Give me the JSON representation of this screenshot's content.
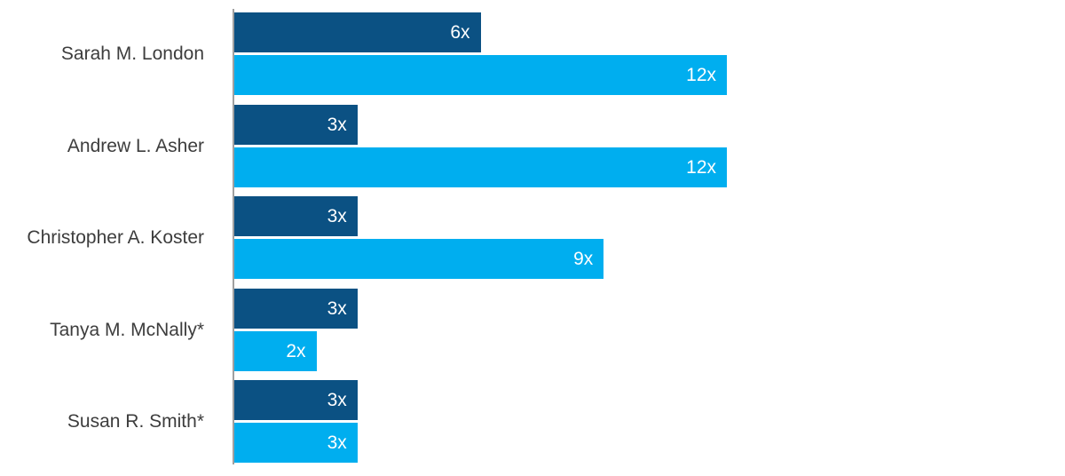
{
  "chart_data": {
    "type": "bar",
    "orientation": "horizontal",
    "title": "",
    "xlabel": "",
    "ylabel": "",
    "grid": false,
    "legend": null,
    "categories": [
      "Sarah M. London",
      "Andrew L. Asher",
      "Christopher A. Koster",
      "Tanya M. McNally*",
      "Susan R. Smith*"
    ],
    "series": [
      {
        "name": "dark-blue-series",
        "color": "#0b5183",
        "values": [
          6,
          3,
          3,
          3,
          3
        ]
      },
      {
        "name": "light-blue-series",
        "color": "#00aeef",
        "values": [
          12,
          12,
          9,
          2,
          3
        ]
      }
    ],
    "value_suffix": "x",
    "value_labels": [
      [
        "6x",
        "12x"
      ],
      [
        "3x",
        "12x"
      ],
      [
        "3x",
        "9x"
      ],
      [
        "3x",
        "2x"
      ],
      [
        "3x",
        "3x"
      ]
    ],
    "xlim": [
      0,
      12
    ],
    "colors": {
      "axis_line": "#a0a0a0",
      "category_label": "#3d3d3d",
      "value_label": "#ffffff",
      "background": "#ffffff"
    }
  }
}
